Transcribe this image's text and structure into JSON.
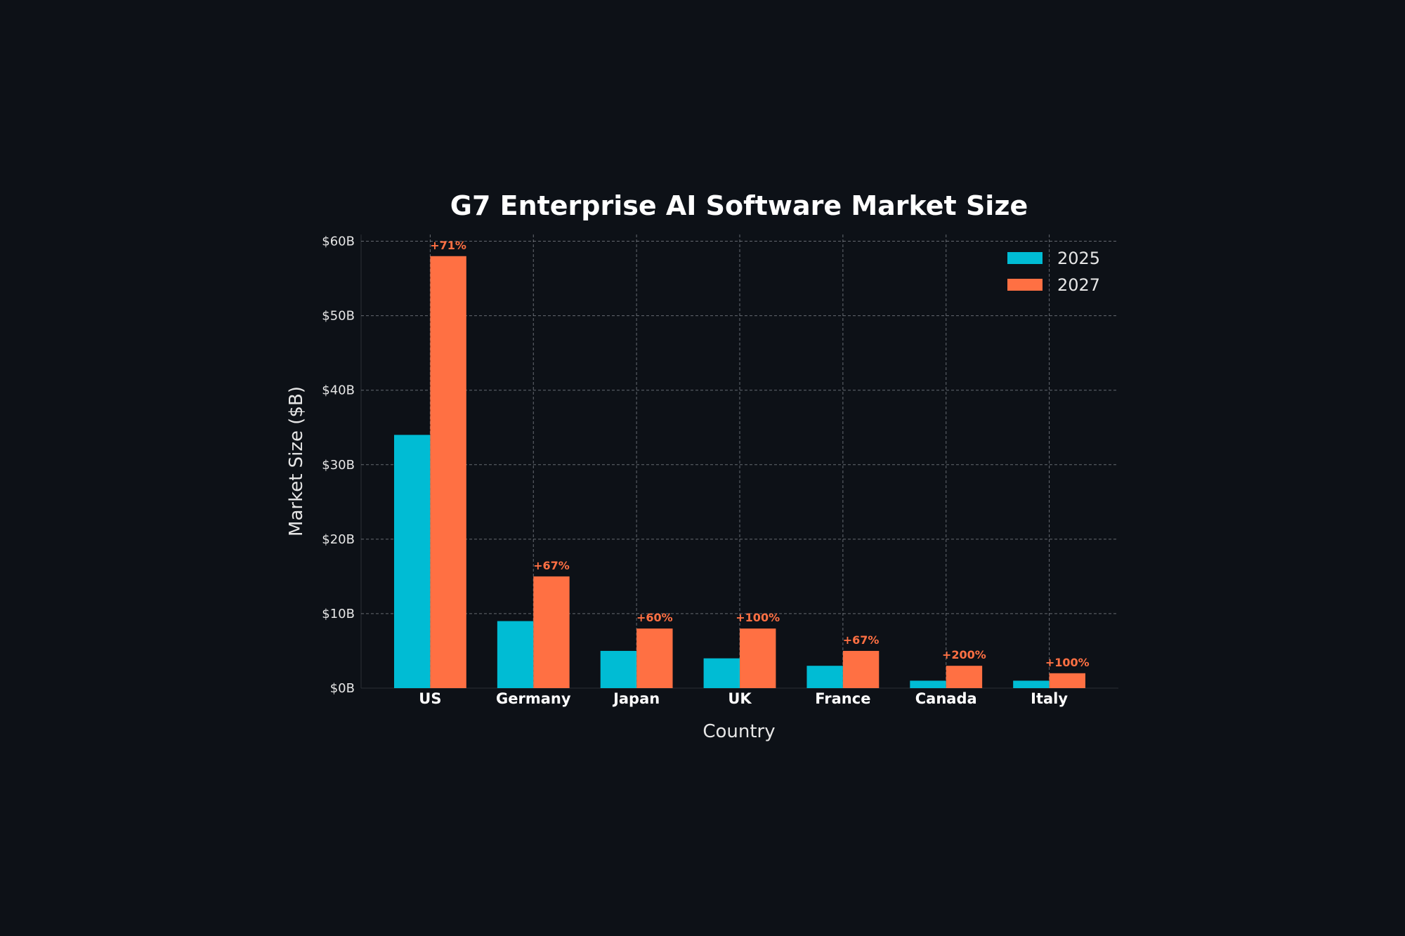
{
  "chart_data": {
    "type": "bar",
    "title": "G7 Enterprise AI Software Market Size",
    "xlabel": "Country",
    "ylabel": "Market Size ($B)",
    "categories": [
      "US",
      "Germany",
      "Japan",
      "UK",
      "France",
      "Canada",
      "Italy"
    ],
    "series": [
      {
        "name": "2025",
        "color": "#00bcd4",
        "values": [
          34,
          9,
          5,
          4,
          3,
          1,
          1
        ]
      },
      {
        "name": "2027",
        "color": "#ff7043",
        "values": [
          58,
          15,
          8,
          8,
          5,
          3,
          2
        ]
      }
    ],
    "annotations": [
      "+71%",
      "+67%",
      "+60%",
      "+100%",
      "+67%",
      "+200%",
      "+100%"
    ],
    "annotation_color": "#ff7043",
    "ylim": [
      0,
      60.9
    ],
    "yticks": [
      0,
      10,
      20,
      30,
      40,
      50,
      60
    ],
    "ytick_labels": [
      "$0B",
      "$10B",
      "$20B",
      "$30B",
      "$40B",
      "$50B",
      "$60B"
    ],
    "grid": true,
    "legend": "top-right",
    "background": "#0d1117"
  }
}
